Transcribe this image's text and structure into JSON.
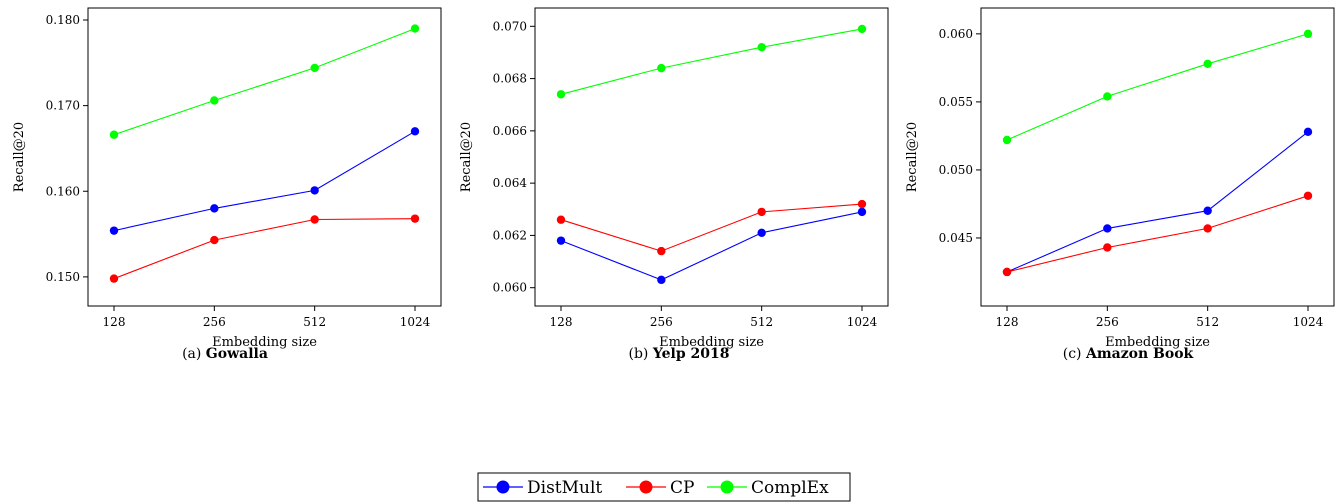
{
  "chart_data": [
    {
      "type": "line",
      "caption_prefix": "(a)",
      "caption_name": "Gowalla",
      "xlabel": "Embedding size",
      "ylabel": "Recall@20",
      "categories": [
        "128",
        "256",
        "512",
        "1024"
      ],
      "ylim": [
        0.1466,
        0.1814
      ],
      "yticks": [
        "0.150",
        "0.160",
        "0.170",
        "0.180"
      ],
      "grid": false,
      "series": [
        {
          "name": "DistMult",
          "color": "#0000ff",
          "values": [
            0.1554,
            0.158,
            0.1601,
            0.167
          ]
        },
        {
          "name": "CP",
          "color": "#ff0000",
          "values": [
            0.1498,
            0.1543,
            0.1567,
            0.1568
          ]
        },
        {
          "name": "ComplEx",
          "color": "#00ff00",
          "values": [
            0.1666,
            0.1706,
            0.1744,
            0.179
          ]
        }
      ]
    },
    {
      "type": "line",
      "caption_prefix": "(b)",
      "caption_name": "Yelp 2018",
      "xlabel": "Embedding size",
      "ylabel": "Recall@20",
      "categories": [
        "128",
        "256",
        "512",
        "1024"
      ],
      "ylim": [
        0.0593,
        0.0707
      ],
      "yticks": [
        "0.060",
        "0.062",
        "0.064",
        "0.066",
        "0.068",
        "0.070"
      ],
      "grid": false,
      "series": [
        {
          "name": "DistMult",
          "color": "#0000ff",
          "values": [
            0.0618,
            0.0603,
            0.0621,
            0.0629
          ]
        },
        {
          "name": "CP",
          "color": "#ff0000",
          "values": [
            0.0626,
            0.0614,
            0.0629,
            0.0632
          ]
        },
        {
          "name": "ComplEx",
          "color": "#00ff00",
          "values": [
            0.0674,
            0.0684,
            0.0692,
            0.0699
          ]
        }
      ]
    },
    {
      "type": "line",
      "caption_prefix": "(c)",
      "caption_name": "Amazon Book",
      "xlabel": "Embedding size",
      "ylabel": "Recall@20",
      "categories": [
        "128",
        "256",
        "512",
        "1024"
      ],
      "ylim": [
        0.04,
        0.0619
      ],
      "yticks": [
        "0.045",
        "0.050",
        "0.055",
        "0.060"
      ],
      "grid": false,
      "series": [
        {
          "name": "DistMult",
          "color": "#0000ff",
          "values": [
            0.0425,
            0.0457,
            0.047,
            0.0528
          ]
        },
        {
          "name": "CP",
          "color": "#ff0000",
          "values": [
            0.0425,
            0.0443,
            0.0457,
            0.0481
          ]
        },
        {
          "name": "ComplEx",
          "color": "#00ff00",
          "values": [
            0.0522,
            0.0554,
            0.0578,
            0.06
          ]
        }
      ]
    }
  ],
  "legend": {
    "placement": "bottom-center",
    "entries": [
      {
        "name": "DistMult",
        "color": "#0000ff"
      },
      {
        "name": "CP",
        "color": "#ff0000"
      },
      {
        "name": "ComplEx",
        "color": "#00ff00"
      }
    ]
  }
}
